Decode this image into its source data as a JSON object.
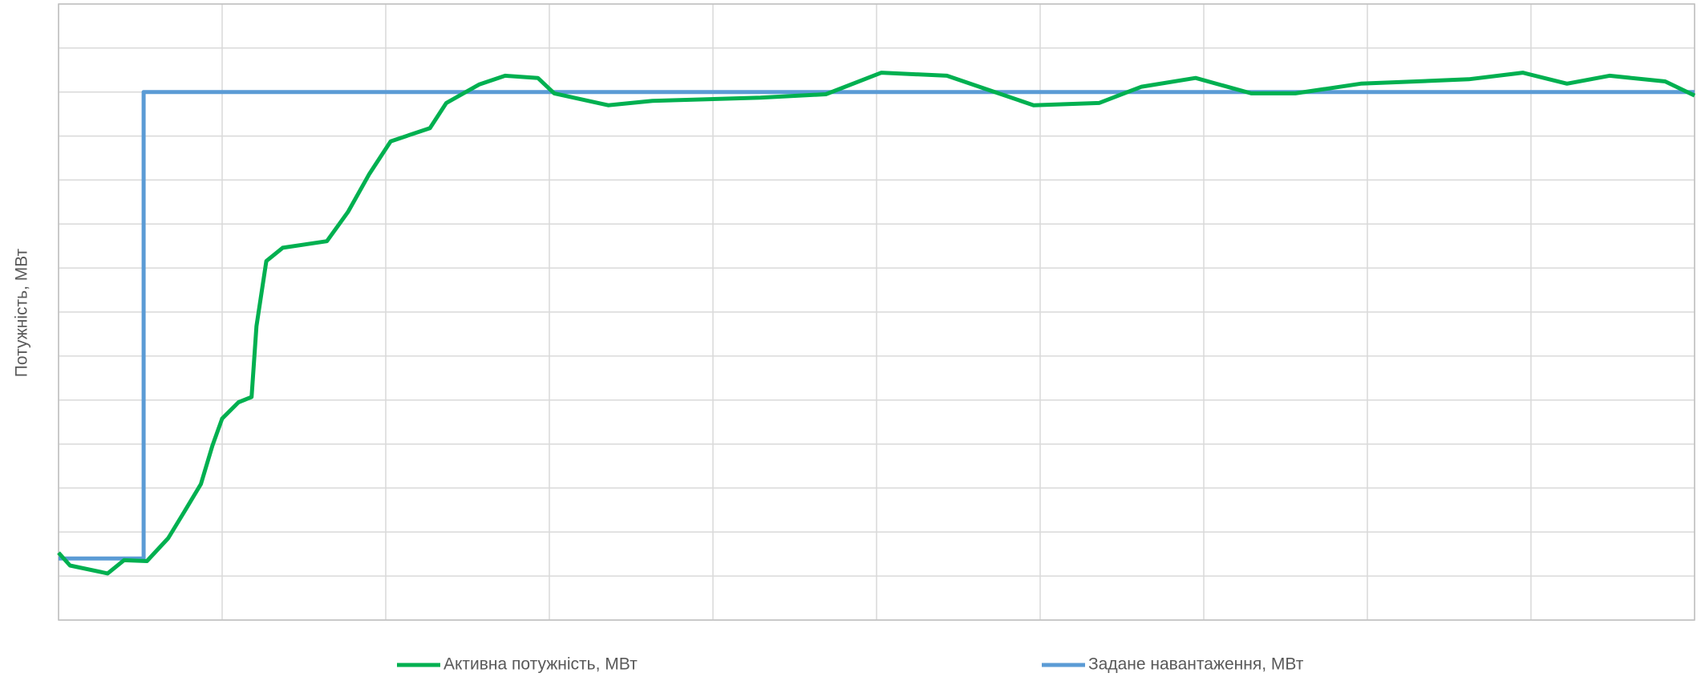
{
  "chart_data": {
    "type": "line",
    "ylabel": "Потужність, МВт",
    "xlim": [
      0,
      10
    ],
    "ylim": [
      0,
      14
    ],
    "xticks": [
      0,
      1,
      2,
      3,
      4,
      5,
      6,
      7,
      8,
      9,
      10
    ],
    "yticks": [
      0,
      1,
      2,
      3,
      4,
      5,
      6,
      7,
      8,
      9,
      10,
      11,
      12,
      13,
      14
    ],
    "grid": true,
    "legend": "bottom",
    "series": [
      {
        "name": "Активна потужність, МВт",
        "color": "#00b050",
        "x": [
          0,
          0.07,
          0.3,
          0.4,
          0.54,
          0.67,
          0.77,
          0.87,
          0.94,
          1.0,
          1.1,
          1.18,
          1.21,
          1.27,
          1.37,
          1.64,
          1.77,
          1.9,
          2.03,
          2.27,
          2.37,
          2.57,
          2.73,
          2.93,
          3.03,
          3.36,
          3.63,
          4.29,
          4.69,
          5.03,
          5.43,
          5.69,
          5.96,
          6.36,
          6.62,
          6.95,
          7.29,
          7.56,
          7.96,
          8.62,
          8.95,
          9.22,
          9.48,
          9.82,
          10
        ],
        "values": [
          1.53,
          1.24,
          1.06,
          1.36,
          1.34,
          1.86,
          2.47,
          3.09,
          3.96,
          4.58,
          4.95,
          5.07,
          6.68,
          8.16,
          8.46,
          8.61,
          9.28,
          10.14,
          10.88,
          11.18,
          11.75,
          12.17,
          12.37,
          12.32,
          11.97,
          11.7,
          11.8,
          11.87,
          11.95,
          12.44,
          12.37,
          12.04,
          11.7,
          11.75,
          12.12,
          12.32,
          11.97,
          11.97,
          12.19,
          12.29,
          12.44,
          12.19,
          12.37,
          12.24,
          11.92
        ]
      },
      {
        "name": "Задане навантаження, МВт",
        "color": "#5b9bd5",
        "x": [
          0,
          0.52,
          0.52,
          10
        ],
        "values": [
          1.4,
          1.4,
          12,
          12
        ]
      }
    ]
  }
}
